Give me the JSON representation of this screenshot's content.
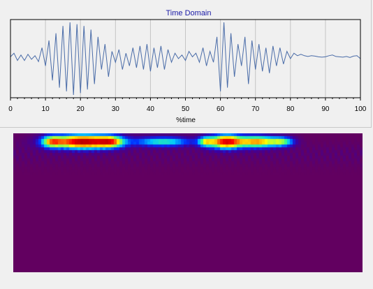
{
  "chart_data": [
    {
      "type": "line",
      "title": "Time Domain",
      "xlabel": "%time",
      "ylabel": "",
      "xlim": [
        0,
        100
      ],
      "ylim": [
        -1,
        1
      ],
      "grid": true,
      "x_ticks": [
        "0",
        "10",
        "20",
        "30",
        "40",
        "50",
        "60",
        "70",
        "80",
        "90",
        "100"
      ],
      "line_color": "#4a6ca8",
      "series": [
        {
          "x": [
            0,
            1,
            2,
            3,
            4,
            5,
            6,
            7,
            8,
            9,
            10,
            11,
            12,
            13,
            14,
            15,
            16,
            17,
            18,
            19,
            20,
            21,
            22,
            23,
            24,
            25,
            26,
            27,
            28,
            29,
            30,
            31,
            32,
            33,
            34,
            35,
            36,
            37,
            38,
            39,
            40,
            41,
            42,
            43,
            44,
            45,
            46,
            47,
            48,
            49,
            50,
            51,
            52,
            53,
            54,
            55,
            56,
            57,
            58,
            59,
            60,
            61,
            62,
            63,
            64,
            65,
            66,
            67,
            68,
            69,
            70,
            71,
            72,
            73,
            74,
            75,
            76,
            77,
            78,
            79,
            80,
            81,
            82,
            83,
            84,
            85,
            86,
            87,
            88,
            89,
            90,
            91,
            92,
            93,
            94,
            95,
            96,
            97,
            98,
            99,
            100
          ],
          "values": [
            0.05,
            0.15,
            -0.05,
            0.1,
            -0.05,
            0.12,
            -0.02,
            0.08,
            -0.08,
            0.3,
            -0.2,
            0.5,
            -0.6,
            0.7,
            -0.8,
            0.9,
            -0.9,
            1.0,
            -1.0,
            0.95,
            -0.95,
            0.9,
            -0.85,
            0.8,
            -0.7,
            0.6,
            -0.3,
            0.4,
            -0.5,
            0.2,
            -0.1,
            0.25,
            -0.3,
            0.15,
            -0.2,
            0.3,
            -0.25,
            0.35,
            -0.3,
            0.4,
            -0.35,
            0.3,
            -0.25,
            0.35,
            -0.3,
            0.25,
            -0.1,
            0.15,
            0.0,
            0.1,
            -0.05,
            0.2,
            0.05,
            0.15,
            -0.1,
            0.3,
            -0.2,
            0.2,
            -0.1,
            0.6,
            -0.9,
            1.0,
            -0.8,
            0.7,
            -0.5,
            0.4,
            -0.2,
            0.6,
            -0.7,
            0.5,
            -0.3,
            0.4,
            -0.35,
            0.3,
            -0.4,
            0.35,
            -0.2,
            0.3,
            -0.15,
            0.2,
            0.0,
            0.15,
            0.08,
            0.12,
            0.08,
            0.06,
            0.08,
            0.07,
            0.05,
            0.04,
            0.05,
            0.08,
            0.1,
            0.06,
            0.05,
            0.04,
            0.06,
            0.03,
            0.07,
            0.08,
            0.0
          ]
        }
      ]
    },
    {
      "type": "heatmap",
      "title": "",
      "xlabel": "",
      "ylabel": "",
      "background_color": "#620060",
      "colormap": [
        "#620060",
        "#3c00a0",
        "#0030ff",
        "#00c8ff",
        "#40ff80",
        "#ffff00",
        "#ff8000",
        "#ff0000",
        "#b00000"
      ],
      "blobs": [
        {
          "x": 20,
          "y": 0.94,
          "intensity": 1.0,
          "spread_x": 6.5,
          "spread_y": 0.035
        },
        {
          "x": 11,
          "y": 0.94,
          "intensity": 0.45,
          "spread_x": 2.0,
          "spread_y": 0.03
        },
        {
          "x": 28,
          "y": 0.94,
          "intensity": 0.45,
          "spread_x": 2.5,
          "spread_y": 0.03
        },
        {
          "x": 43,
          "y": 0.94,
          "intensity": 0.45,
          "spread_x": 6.0,
          "spread_y": 0.025
        },
        {
          "x": 61,
          "y": 0.94,
          "intensity": 0.92,
          "spread_x": 3.5,
          "spread_y": 0.035
        },
        {
          "x": 70,
          "y": 0.94,
          "intensity": 0.7,
          "spread_x": 3.5,
          "spread_y": 0.03
        },
        {
          "x": 77,
          "y": 0.94,
          "intensity": 0.5,
          "spread_x": 2.5,
          "spread_y": 0.025
        },
        {
          "x": 55,
          "y": 0.94,
          "intensity": 0.4,
          "spread_x": 1.5,
          "spread_y": 0.025
        }
      ]
    }
  ]
}
